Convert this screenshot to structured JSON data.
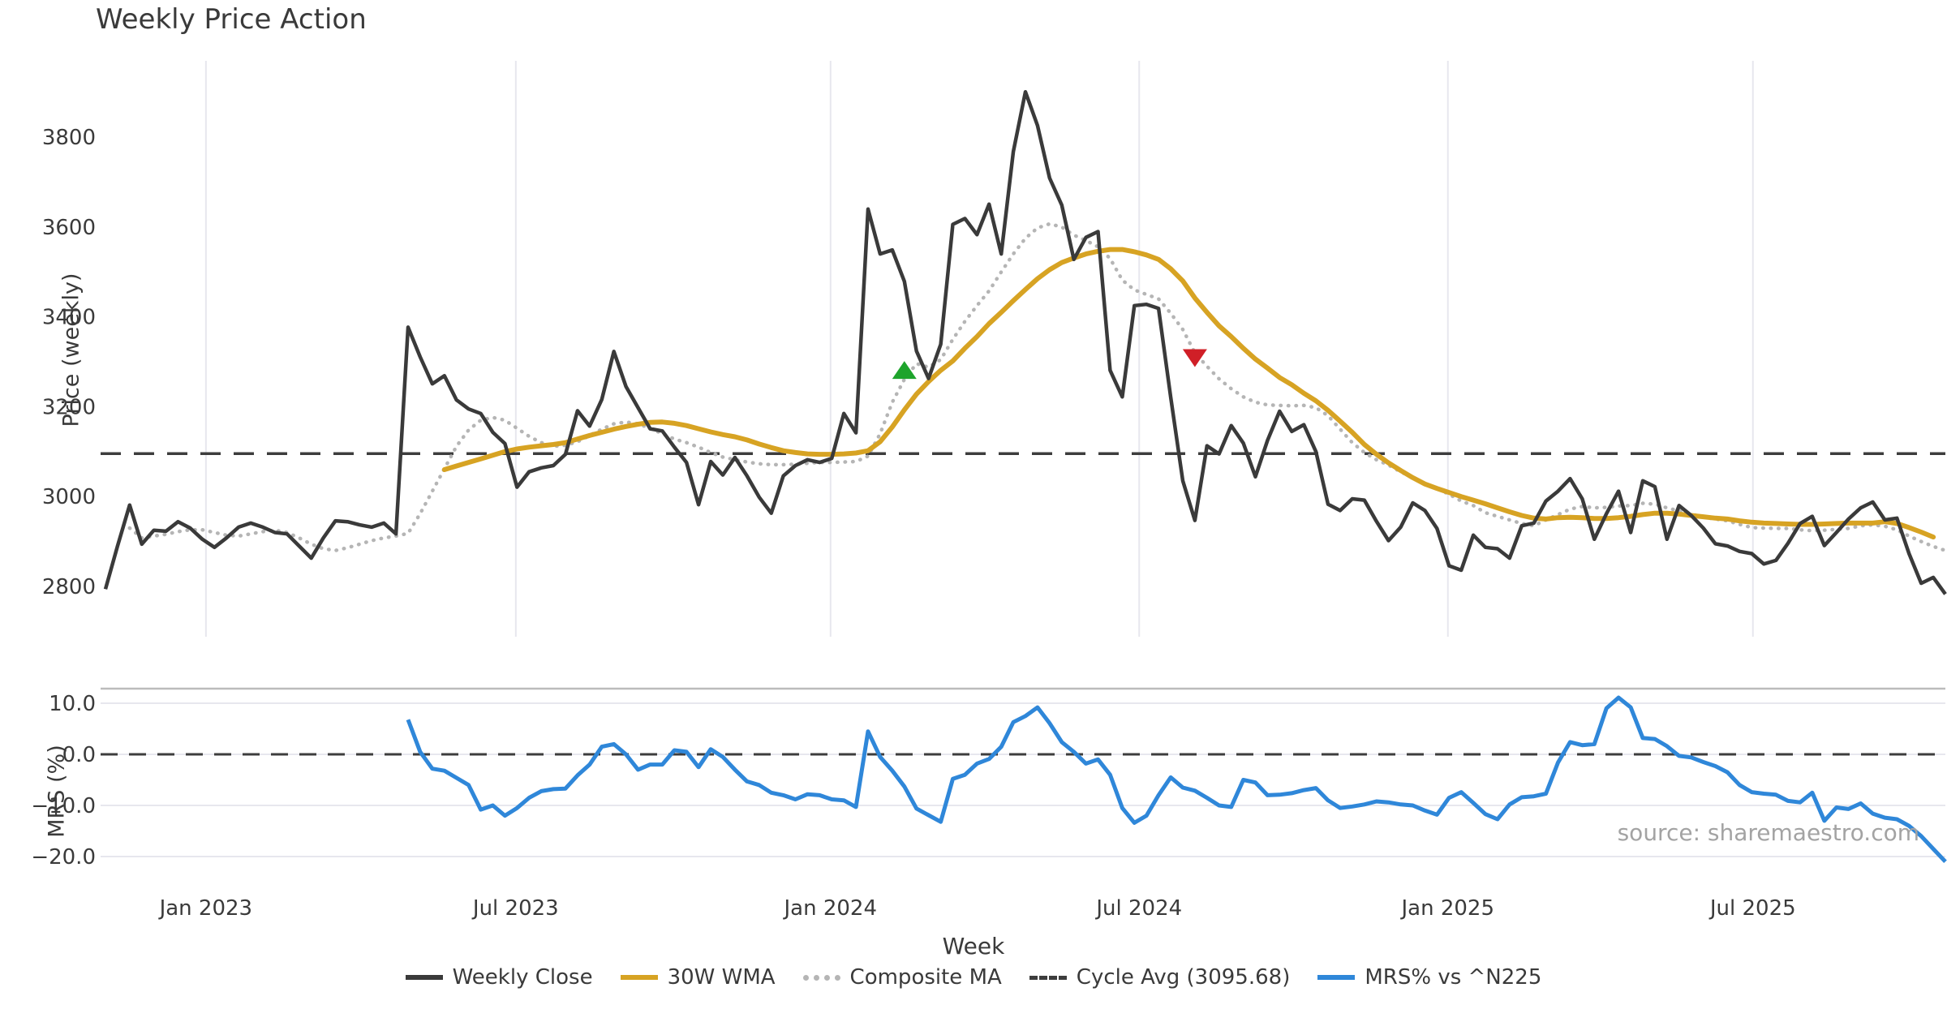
{
  "title": "Weekly Price Action",
  "xlabel": "Week",
  "source_text": "source: sharemaestro.com",
  "colors": {
    "close": "#3a3a3a",
    "wma": "#d7a323",
    "composite": "#b5b5b5",
    "cycle": "#3d3d3d",
    "mrs": "#2f87d9",
    "buy_marker": "#1ea42c",
    "sell_marker": "#d01f27",
    "grid": "#e7e7ee",
    "panel_border": "#bcbcbc",
    "tick_text": "#3a3a3a"
  },
  "legend": [
    {
      "id": "weekly-close",
      "label": "Weekly Close",
      "color": "#3a3a3a",
      "style": "solid"
    },
    {
      "id": "wma",
      "label": "30W WMA",
      "color": "#d7a323",
      "style": "solid"
    },
    {
      "id": "composite-ma",
      "label": "Composite MA",
      "color": "#b5b5b5",
      "style": "dotted"
    },
    {
      "id": "cycle-avg",
      "label": "Cycle Avg (3095.68)",
      "color": "#3d3d3d",
      "style": "dashed"
    },
    {
      "id": "mrs",
      "label": "MRS% vs ^N225",
      "color": "#2f87d9",
      "style": "solid"
    }
  ],
  "chart_data": {
    "type": "line",
    "x_unit": "week_index",
    "n_weeks": 153,
    "xticks": {
      "positions": [
        8.3,
        33.9,
        59.9,
        85.4,
        110.9,
        136.1
      ],
      "labels": [
        "Jan 2023",
        "Jul 2023",
        "Jan 2024",
        "Jul 2024",
        "Jan 2025",
        "Jul 2025"
      ]
    },
    "top_panel": {
      "ylabel": "Price (weekly)",
      "ylim": [
        2688,
        3970
      ],
      "yticks": [
        {
          "v": 2800,
          "label": "2800"
        },
        {
          "v": 3000,
          "label": "3000"
        },
        {
          "v": 3200,
          "label": "3200"
        },
        {
          "v": 3400,
          "label": "3400"
        },
        {
          "v": 3600,
          "label": "3600"
        },
        {
          "v": 3800,
          "label": "3800"
        }
      ],
      "cycle_avg": 3095.68,
      "grid": "vertical",
      "signals": [
        {
          "type": "buy",
          "week": 66,
          "price": 3280
        },
        {
          "type": "sell",
          "week": 90,
          "price": 3310
        }
      ],
      "series": [
        {
          "name": "Weekly Close",
          "key": "close",
          "values": [
            2794,
            2890,
            2981,
            2894,
            2925,
            2923,
            2944,
            2930,
            2905,
            2887,
            2908,
            2932,
            2941,
            2932,
            2920,
            2917,
            2890,
            2863,
            2908,
            2946,
            2944,
            2937,
            2932,
            2941,
            2917,
            3377,
            3311,
            3251,
            3269,
            3215,
            3195,
            3185,
            3143,
            3118,
            3021,
            3055,
            3064,
            3069,
            3094,
            3191,
            3157,
            3216,
            3323,
            3245,
            3198,
            3151,
            3146,
            3110,
            3076,
            2982,
            3078,
            3048,
            3087,
            3046,
            2999,
            2963,
            3046,
            3069,
            3082,
            3076,
            3085,
            3185,
            3142,
            3640,
            3540,
            3549,
            3479,
            3324,
            3263,
            3339,
            3606,
            3619,
            3583,
            3651,
            3540,
            3768,
            3901,
            3826,
            3709,
            3649,
            3528,
            3577,
            3590,
            3281,
            3222,
            3425,
            3428,
            3419,
            3221,
            3035,
            2947,
            3113,
            3095,
            3158,
            3119,
            3044,
            3125,
            3190,
            3145,
            3160,
            3100,
            2983,
            2969,
            2995,
            2992,
            2945,
            2902,
            2932,
            2986,
            2969,
            2929,
            2846,
            2836,
            2914,
            2887,
            2884,
            2863,
            2935,
            2941,
            2990,
            3012,
            3040,
            2995,
            2905,
            2962,
            3012,
            2920,
            3035,
            3022,
            2905,
            2980,
            2958,
            2930,
            2895,
            2890,
            2878,
            2873,
            2850,
            2858,
            2896,
            2940,
            2956,
            2891,
            2920,
            2950,
            2975,
            2988,
            2948,
            2952,
            2873,
            2807,
            2820,
            2783
          ]
        },
        {
          "name": "30W WMA",
          "key": "wma",
          "values": [
            null,
            null,
            null,
            null,
            null,
            null,
            null,
            null,
            null,
            null,
            null,
            null,
            null,
            null,
            null,
            null,
            null,
            null,
            null,
            null,
            null,
            null,
            null,
            null,
            null,
            null,
            null,
            null,
            3060,
            3068,
            3076,
            3084,
            3092,
            3100,
            3106,
            3110,
            3113,
            3116,
            3120,
            3128,
            3136,
            3143,
            3150,
            3156,
            3161,
            3165,
            3166,
            3163,
            3158,
            3151,
            3144,
            3138,
            3133,
            3126,
            3117,
            3109,
            3102,
            3098,
            3095,
            3094,
            3094,
            3095,
            3097,
            3102,
            3122,
            3155,
            3193,
            3228,
            3256,
            3281,
            3302,
            3330,
            3356,
            3385,
            3410,
            3436,
            3461,
            3485,
            3505,
            3521,
            3531,
            3540,
            3546,
            3550,
            3550,
            3545,
            3538,
            3528,
            3507,
            3480,
            3442,
            3410,
            3380,
            3356,
            3330,
            3306,
            3286,
            3265,
            3249,
            3230,
            3213,
            3192,
            3168,
            3143,
            3116,
            3094,
            3075,
            3058,
            3042,
            3028,
            3018,
            3009,
            3000,
            2992,
            2984,
            2975,
            2966,
            2958,
            2952,
            2950,
            2953,
            2954,
            2953,
            2951,
            2951,
            2953,
            2956,
            2960,
            2963,
            2963,
            2961,
            2958,
            2955,
            2952,
            2950,
            2946,
            2943,
            2941,
            2940,
            2939,
            2938,
            2938,
            2939,
            2940,
            2941,
            2941,
            2941,
            2944,
            2940,
            2931,
            2921,
            2910
          ]
        },
        {
          "name": "Composite MA",
          "key": "composite",
          "values": [
            null,
            null,
            2930,
            2908,
            2912,
            2916,
            2922,
            2926,
            2926,
            2920,
            2914,
            2912,
            2917,
            2922,
            2925,
            2920,
            2908,
            2894,
            2884,
            2880,
            2886,
            2894,
            2902,
            2908,
            2912,
            2918,
            2962,
            3012,
            3062,
            3112,
            3148,
            3170,
            3176,
            3170,
            3152,
            3134,
            3120,
            3112,
            3114,
            3122,
            3136,
            3150,
            3162,
            3166,
            3162,
            3152,
            3140,
            3128,
            3120,
            3110,
            3098,
            3088,
            3082,
            3077,
            3073,
            3071,
            3071,
            3072,
            3074,
            3076,
            3076,
            3077,
            3078,
            3090,
            3140,
            3210,
            3261,
            3296,
            3288,
            3305,
            3350,
            3390,
            3425,
            3458,
            3500,
            3540,
            3575,
            3598,
            3607,
            3600,
            3582,
            3570,
            3556,
            3530,
            3482,
            3460,
            3450,
            3440,
            3408,
            3372,
            3320,
            3290,
            3262,
            3240,
            3222,
            3210,
            3204,
            3203,
            3202,
            3203,
            3198,
            3180,
            3150,
            3120,
            3098,
            3082,
            3070,
            3055,
            3042,
            3028,
            3018,
            3005,
            2990,
            2980,
            2964,
            2956,
            2948,
            2940,
            2935,
            2948,
            2960,
            2972,
            2978,
            2975,
            2976,
            2979,
            2980,
            2985,
            2983,
            2975,
            2968,
            2961,
            2954,
            2950,
            2946,
            2938,
            2931,
            2930,
            2929,
            2929,
            2926,
            2924,
            2925,
            2927,
            2929,
            2935,
            2937,
            2934,
            2926,
            2912,
            2900,
            2889,
            2880
          ]
        }
      ]
    },
    "bottom_panel": {
      "ylabel": "MRS (%)",
      "ylim": [
        -26.98,
        12.86
      ],
      "yticks": [
        {
          "v": 10,
          "label": "10.0"
        },
        {
          "v": 0,
          "label": "0.0"
        },
        {
          "v": -10,
          "label": "−10.0"
        },
        {
          "v": -20,
          "label": "−20.0"
        }
      ],
      "zero_line": 0,
      "grid": "horizontal",
      "series": [
        {
          "name": "MRS% vs ^N225",
          "key": "mrs",
          "values": [
            null,
            null,
            null,
            null,
            null,
            null,
            null,
            null,
            null,
            null,
            null,
            null,
            null,
            null,
            null,
            null,
            null,
            null,
            null,
            null,
            null,
            null,
            null,
            null,
            null,
            6.8,
            0.5,
            -2.8,
            -3.2,
            -4.6,
            -6.0,
            -10.8,
            -10.0,
            -12.0,
            -10.5,
            -8.5,
            -7.2,
            -6.8,
            -6.7,
            -4.1,
            -2.0,
            1.5,
            2.0,
            0.0,
            -3.0,
            -2.0,
            -2.0,
            0.8,
            0.5,
            -2.5,
            1.0,
            -0.5,
            -3.0,
            -5.3,
            -6.0,
            -7.5,
            -8.0,
            -8.8,
            -7.8,
            -8.0,
            -8.8,
            -9.0,
            -10.3,
            4.5,
            -0.5,
            -3.2,
            -6.3,
            -10.6,
            -11.9,
            -13.2,
            -4.8,
            -4.0,
            -1.8,
            -0.9,
            1.5,
            6.3,
            7.5,
            9.2,
            6.1,
            2.4,
            0.5,
            -1.8,
            -1.0,
            -4.0,
            -10.5,
            -13.4,
            -12.0,
            -8.0,
            -4.5,
            -6.5,
            -7.1,
            -8.5,
            -10.0,
            -10.3,
            -5.0,
            -5.5,
            -8.0,
            -7.9,
            -7.6,
            -7.0,
            -6.6,
            -9.0,
            -10.5,
            -10.2,
            -9.8,
            -9.2,
            -9.4,
            -9.8,
            -10.0,
            -11.0,
            -11.8,
            -8.5,
            -7.4,
            -9.5,
            -11.7,
            -12.7,
            -9.8,
            -8.4,
            -8.2,
            -7.7,
            -1.6,
            2.4,
            1.8,
            2.0,
            9.0,
            11.1,
            9.2,
            3.2,
            3.0,
            1.6,
            -0.3,
            -0.6,
            -1.5,
            -2.3,
            -3.5,
            -6.0,
            -7.4,
            -7.7,
            -7.9,
            -9.1,
            -9.4,
            -7.5,
            -13.0,
            -10.4,
            -10.7,
            -9.6,
            -11.6,
            -12.4,
            -12.7,
            -14.0,
            -16.0,
            -18.5,
            -21.0
          ]
        }
      ]
    }
  }
}
